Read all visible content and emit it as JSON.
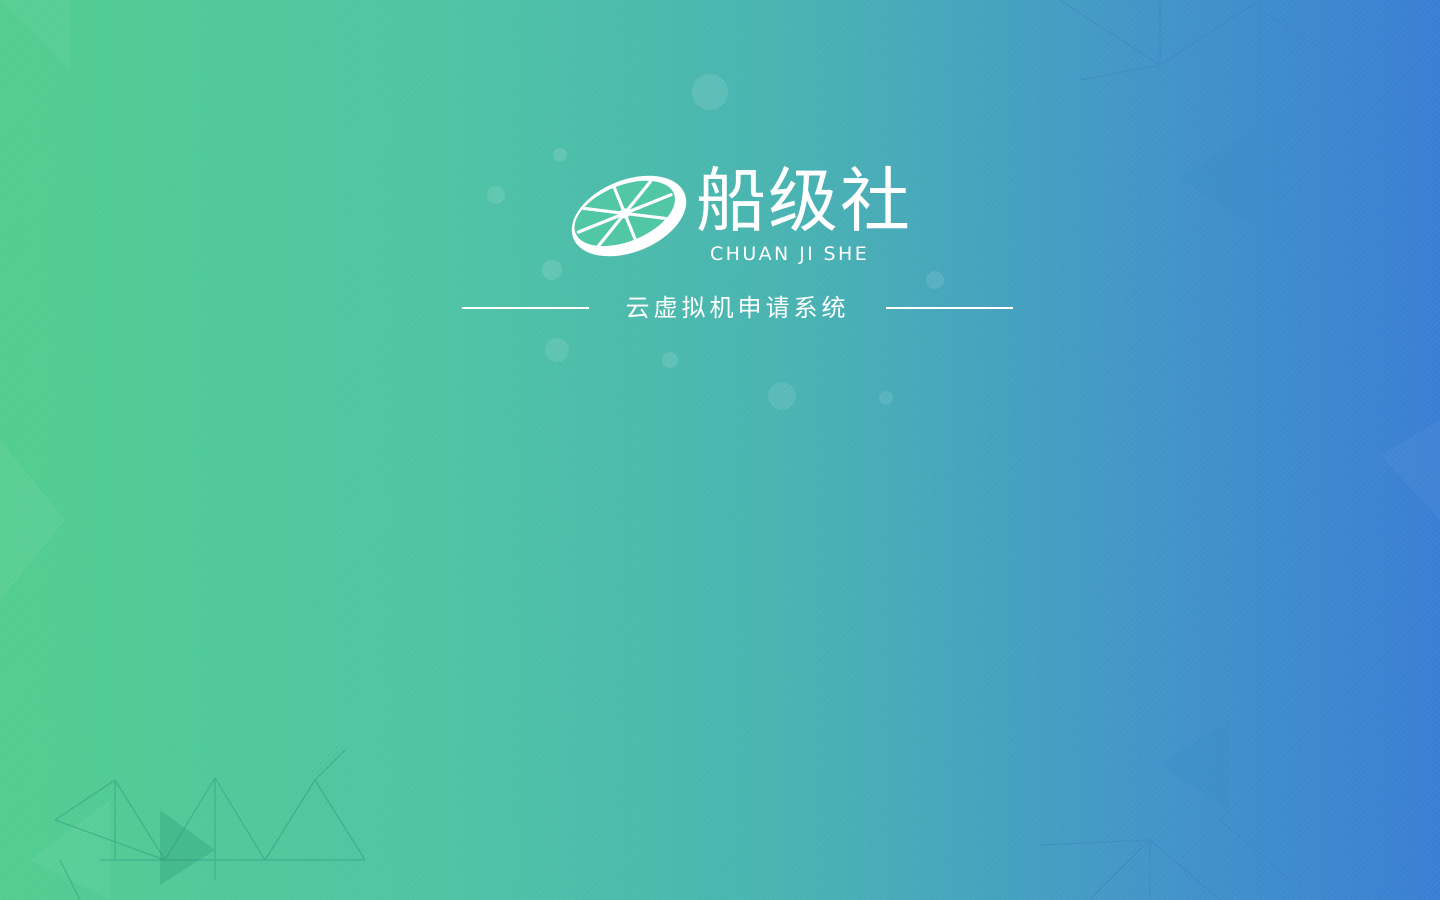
{
  "brand": {
    "name": "船级社",
    "romanization": "CHUAN JI SHE",
    "logo_icon": "lemon-slice-icon",
    "accent_color": "#ffffff"
  },
  "system": {
    "title": "云虚拟机申请系统"
  },
  "background": {
    "gradient_start": "#52cd8f",
    "gradient_end": "#3a7ed4"
  }
}
